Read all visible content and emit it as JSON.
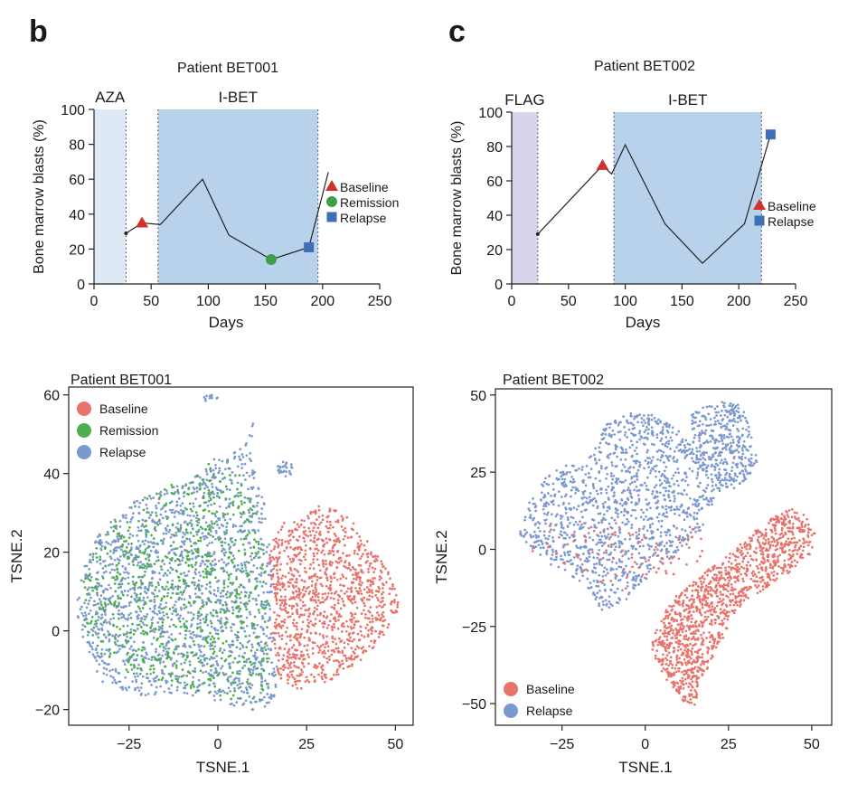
{
  "panel_labels": {
    "b": "b",
    "c": "c"
  },
  "colors": {
    "baseline": "#e8736b",
    "remission": "#4cae4c",
    "relapse": "#7b98cf",
    "triangle": "#d2322d",
    "circle": "#3f9e4a",
    "square": "#3f6eb5",
    "aza_band": "#ddeaf5",
    "ibet_band": "#b7d2ea",
    "flag_band": "#d8d4ec"
  },
  "chart_data": [
    {
      "type": "line",
      "title": "Patient BET001",
      "xlabel": "Days",
      "ylabel": "Bone marrow blasts (%)",
      "xlim": [
        0,
        250
      ],
      "ylim": [
        0,
        100
      ],
      "xticks": [
        "0",
        "50",
        "100",
        "150",
        "200",
        "250"
      ],
      "yticks": [
        "0",
        "20",
        "40",
        "60",
        "80",
        "100"
      ],
      "treatment_periods": [
        {
          "label": "AZA",
          "start": 0,
          "end": 28
        },
        {
          "label": "I-BET",
          "start": 56,
          "end": 196
        }
      ],
      "series": [
        {
          "points": [
            [
              28,
              29
            ],
            [
              42,
              35
            ],
            [
              58,
              34
            ],
            [
              95,
              60
            ],
            [
              118,
              28
            ],
            [
              155,
              14
            ],
            [
              188,
              21
            ],
            [
              205,
              64
            ]
          ]
        }
      ],
      "markers": [
        {
          "label": "Baseline",
          "shape": "triangle",
          "x": 42,
          "y": 35
        },
        {
          "label": "Remission",
          "shape": "circle",
          "x": 155,
          "y": 14
        },
        {
          "label": "Relapse",
          "shape": "square",
          "x": 188,
          "y": 21
        }
      ],
      "legend": [
        "Baseline",
        "Remission",
        "Relapse"
      ],
      "legend_position": "right"
    },
    {
      "type": "line",
      "title": "Patient BET002",
      "xlabel": "Days",
      "ylabel": "Bone marrow blasts (%)",
      "xlim": [
        0,
        250
      ],
      "ylim": [
        0,
        100
      ],
      "xticks": [
        "0",
        "50",
        "100",
        "150",
        "200",
        "250"
      ],
      "yticks": [
        "0",
        "20",
        "40",
        "60",
        "80",
        "100"
      ],
      "treatment_periods": [
        {
          "label": "FLAG",
          "start": 0,
          "end": 23
        },
        {
          "label": "I-BET",
          "start": 90,
          "end": 220
        }
      ],
      "series": [
        {
          "points": [
            [
              23,
              29
            ],
            [
              80,
              69
            ],
            [
              88,
              64
            ],
            [
              100,
              81
            ],
            [
              135,
              35
            ],
            [
              168,
              12
            ],
            [
              205,
              35
            ],
            [
              228,
              87
            ]
          ]
        }
      ],
      "markers": [
        {
          "label": "Baseline",
          "shape": "triangle",
          "x": 80,
          "y": 69
        },
        {
          "label": "Relapse",
          "shape": "square",
          "x": 228,
          "y": 87
        }
      ],
      "legend": [
        "Baseline",
        "Relapse"
      ],
      "legend_position": "right"
    },
    {
      "type": "scatter",
      "title": "Patient BET001",
      "xlabel": "TSNE.1",
      "ylabel": "TSNE.2",
      "xlim": [
        -42,
        55
      ],
      "ylim": [
        -24,
        62
      ],
      "xticks": [
        "−25",
        "0",
        "25",
        "50"
      ],
      "yticks": [
        "−20",
        "0",
        "20",
        "40",
        "60"
      ],
      "legend": [
        "Baseline",
        "Remission",
        "Relapse"
      ],
      "legend_position": "top-left",
      "clusters": [
        {
          "series": "Relapse",
          "shape": "poly",
          "n": 1700,
          "poly": [
            [
              -39,
              12
            ],
            [
              -36,
              21
            ],
            [
              -31,
              28
            ],
            [
              -24,
              33
            ],
            [
              -17,
              35
            ],
            [
              -9,
              38
            ],
            [
              -2,
              44
            ],
            [
              3,
              44
            ],
            [
              8,
              48
            ],
            [
              10,
              53
            ],
            [
              9,
              44
            ],
            [
              13,
              35
            ],
            [
              14,
              24
            ],
            [
              16,
              16
            ],
            [
              15,
              8
            ],
            [
              16,
              -2
            ],
            [
              17,
              -12
            ],
            [
              15,
              -20
            ],
            [
              8,
              -20
            ],
            [
              0,
              -18
            ],
            [
              -10,
              -16
            ],
            [
              -22,
              -17
            ],
            [
              -33,
              -13
            ],
            [
              -38,
              -2
            ],
            [
              -40,
              6
            ]
          ]
        },
        {
          "series": "Remission",
          "shape": "poly",
          "n": 850,
          "poly": [
            [
              -38,
              12
            ],
            [
              -35,
              20
            ],
            [
              -30,
              27
            ],
            [
              -23,
              33
            ],
            [
              -16,
              36
            ],
            [
              -9,
              39
            ],
            [
              -2,
              44
            ],
            [
              4,
              44
            ],
            [
              7,
              38
            ],
            [
              11,
              30
            ],
            [
              13,
              20
            ],
            [
              14,
              10
            ],
            [
              15,
              0
            ],
            [
              16,
              -10
            ],
            [
              14,
              -18
            ],
            [
              5,
              -18
            ],
            [
              -6,
              -15
            ],
            [
              -16,
              -13
            ],
            [
              -26,
              -11
            ],
            [
              -33,
              -6
            ],
            [
              -38,
              2
            ]
          ]
        },
        {
          "series": "Baseline",
          "shape": "poly",
          "n": 1150,
          "poly": [
            [
              14,
              18
            ],
            [
              16,
              24
            ],
            [
              19,
              28
            ],
            [
              24,
              30
            ],
            [
              29,
              32
            ],
            [
              33,
              31
            ],
            [
              38,
              28
            ],
            [
              43,
              22
            ],
            [
              48,
              15
            ],
            [
              51,
              8
            ],
            [
              50,
              2
            ],
            [
              45,
              -3
            ],
            [
              40,
              -8
            ],
            [
              34,
              -12
            ],
            [
              28,
              -14
            ],
            [
              22,
              -15
            ],
            [
              17,
              -12
            ],
            [
              15,
              -2
            ],
            [
              16,
              8
            ]
          ]
        },
        {
          "series": "Relapse",
          "shape": "ellipse",
          "n": 12,
          "cx": -2,
          "cy": 59,
          "rx": 2,
          "ry": 1
        },
        {
          "series": "Relapse",
          "shape": "ellipse",
          "n": 25,
          "cx": 19,
          "cy": 41,
          "rx": 2.5,
          "ry": 2
        }
      ]
    },
    {
      "type": "scatter",
      "title": "Patient BET002",
      "xlabel": "TSNE.1",
      "ylabel": "TSNE.2",
      "xlim": [
        -45,
        56
      ],
      "ylim": [
        -57,
        52
      ],
      "xticks": [
        "−25",
        "0",
        "25",
        "50"
      ],
      "yticks": [
        "−50",
        "−25",
        "0",
        "25",
        "50"
      ],
      "legend": [
        "Baseline",
        "Relapse"
      ],
      "legend_position": "bottom-left",
      "clusters": [
        {
          "series": "Relapse",
          "shape": "poly",
          "n": 1300,
          "poly": [
            [
              -38,
              5
            ],
            [
              -35,
              15
            ],
            [
              -30,
              23
            ],
            [
              -25,
              27
            ],
            [
              -18,
              28
            ],
            [
              -14,
              35
            ],
            [
              -12,
              41
            ],
            [
              -5,
              44
            ],
            [
              2,
              45
            ],
            [
              8,
              41
            ],
            [
              13,
              35
            ],
            [
              17,
              31
            ],
            [
              19,
              24
            ],
            [
              21,
              15
            ],
            [
              16,
              5
            ],
            [
              8,
              -3
            ],
            [
              0,
              -10
            ],
            [
              -6,
              -17
            ],
            [
              -13,
              -20
            ],
            [
              -18,
              -12
            ],
            [
              -25,
              -7
            ],
            [
              -33,
              -2
            ]
          ]
        },
        {
          "series": "Relapse",
          "shape": "poly",
          "n": 380,
          "poly": [
            [
              14,
              44
            ],
            [
              20,
              48
            ],
            [
              27,
              48
            ],
            [
              30,
              44
            ],
            [
              32,
              36
            ],
            [
              34,
              28
            ],
            [
              30,
              22
            ],
            [
              24,
              18
            ],
            [
              19,
              20
            ],
            [
              16,
              28
            ],
            [
              14,
              36
            ]
          ]
        },
        {
          "series": "Baseline",
          "shape": "poly",
          "n": 1250,
          "poly": [
            [
              2,
              -28
            ],
            [
              6,
              -20
            ],
            [
              10,
              -14
            ],
            [
              16,
              -9
            ],
            [
              22,
              -4
            ],
            [
              27,
              0
            ],
            [
              31,
              4
            ],
            [
              36,
              9
            ],
            [
              42,
              13
            ],
            [
              47,
              13
            ],
            [
              51,
              5
            ],
            [
              50,
              -1
            ],
            [
              44,
              -7
            ],
            [
              37,
              -12
            ],
            [
              30,
              -17
            ],
            [
              26,
              -22
            ],
            [
              23,
              -30
            ],
            [
              19,
              -38
            ],
            [
              16,
              -44
            ],
            [
              15,
              -51
            ],
            [
              11,
              -49
            ],
            [
              6,
              -42
            ],
            [
              2,
              -36
            ]
          ]
        },
        {
          "series": "Baseline",
          "shape": "poly",
          "n": 90,
          "poly": [
            [
              -38,
              2
            ],
            [
              -30,
              8
            ],
            [
              -20,
              10
            ],
            [
              -10,
              8
            ],
            [
              0,
              6
            ],
            [
              10,
              5
            ],
            [
              18,
              8
            ],
            [
              18,
              -4
            ],
            [
              10,
              -8
            ],
            [
              0,
              -10
            ],
            [
              -8,
              -15
            ],
            [
              -16,
              -10
            ],
            [
              -26,
              -6
            ]
          ]
        }
      ]
    }
  ]
}
